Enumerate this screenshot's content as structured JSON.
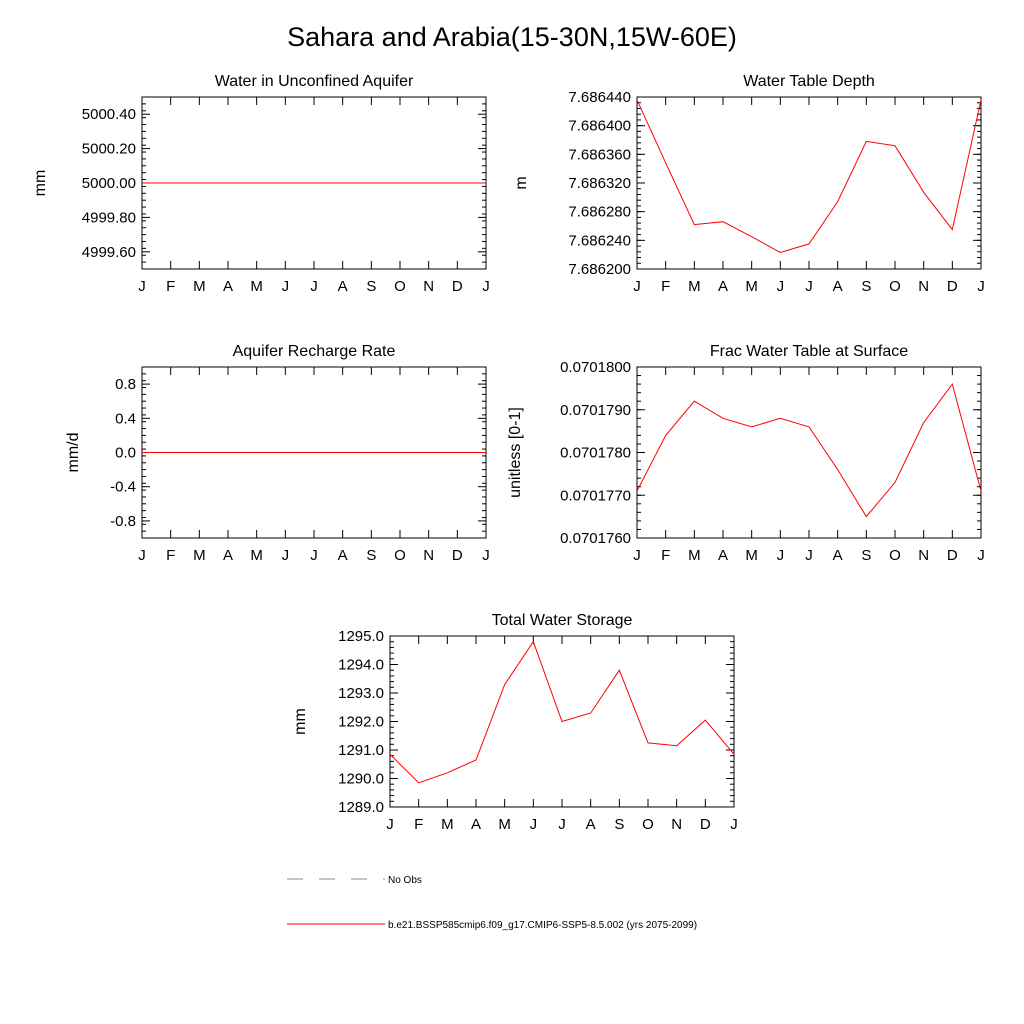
{
  "title": "Sahara and Arabia(15-30N,15W-60E)",
  "month_ticks": [
    "J",
    "F",
    "M",
    "A",
    "M",
    "J",
    "J",
    "A",
    "S",
    "O",
    "N",
    "D",
    "J"
  ],
  "chart_data": [
    {
      "type": "line",
      "title": "Water in Unconfined Aquifer",
      "ylabel": "mm",
      "ylim": [
        4999.5,
        5000.5
      ],
      "yticks": [
        4999.6,
        4999.8,
        5000.0,
        5000.2,
        5000.4
      ],
      "ytick_labels": [
        "4999.60",
        "4999.80",
        "5000.00",
        "5000.20",
        "5000.40"
      ],
      "series": [
        {
          "color": "#ff0000",
          "values": [
            5000.0,
            5000.0,
            5000.0,
            5000.0,
            5000.0,
            5000.0,
            5000.0,
            5000.0,
            5000.0,
            5000.0,
            5000.0,
            5000.0,
            5000.0
          ]
        }
      ]
    },
    {
      "type": "line",
      "title": "Water Table Depth",
      "ylabel": "m",
      "ylim": [
        7.6862,
        7.68644
      ],
      "yticks": [
        7.6862,
        7.68624,
        7.68628,
        7.68632,
        7.68636,
        7.6864,
        7.68644
      ],
      "ytick_labels": [
        "7.686200",
        "7.686240",
        "7.686280",
        "7.686320",
        "7.686360",
        "7.686400",
        "7.686440"
      ],
      "series": [
        {
          "color": "#ff0000",
          "values": [
            7.686436,
            7.686348,
            7.686262,
            7.686266,
            7.686245,
            7.686223,
            7.686235,
            7.686294,
            7.686378,
            7.686372,
            7.686307,
            7.686255,
            7.686436
          ]
        }
      ]
    },
    {
      "type": "line",
      "title": "Aquifer Recharge Rate",
      "ylabel": "mm/d",
      "ylim": [
        -1.0,
        1.0
      ],
      "yticks": [
        -0.8,
        -0.4,
        0.0,
        0.4,
        0.8
      ],
      "ytick_labels": [
        "-0.8",
        "-0.4",
        "0.0",
        "0.4",
        "0.8"
      ],
      "series": [
        {
          "color": "#ff0000",
          "values": [
            0,
            0,
            0,
            0,
            0,
            0,
            0,
            0,
            0,
            0,
            0,
            0,
            0
          ]
        }
      ]
    },
    {
      "type": "line",
      "title": "Frac Water Table at Surface",
      "ylabel": "unitless [0-1]",
      "ylim": [
        0.070176,
        0.07018
      ],
      "yticks": [
        0.070176,
        0.070177,
        0.070178,
        0.070179,
        0.07018
      ],
      "ytick_labels": [
        "0.0701760",
        "0.0701770",
        "0.0701780",
        "0.0701790",
        "0.0701800"
      ],
      "series": [
        {
          "color": "#ff0000",
          "values": [
            0.0701771,
            0.0701784,
            0.0701792,
            0.0701788,
            0.0701786,
            0.0701788,
            0.0701786,
            0.0701776,
            0.0701765,
            0.0701773,
            0.0701787,
            0.0701796,
            0.0701771
          ]
        }
      ]
    },
    {
      "type": "line",
      "title": "Total Water Storage",
      "ylabel": "mm",
      "ylim": [
        1289.0,
        1295.0
      ],
      "yticks": [
        1289.0,
        1290.0,
        1291.0,
        1292.0,
        1293.0,
        1294.0,
        1295.0
      ],
      "ytick_labels": [
        "1289.0",
        "1290.0",
        "1291.0",
        "1292.0",
        "1293.0",
        "1294.0",
        "1295.0"
      ],
      "series": [
        {
          "color": "#ff0000",
          "values": [
            1290.85,
            1289.85,
            1290.2,
            1290.65,
            1293.3,
            1294.8,
            1292.0,
            1292.3,
            1293.8,
            1291.25,
            1291.15,
            1292.05,
            1290.85
          ]
        }
      ]
    }
  ],
  "legend": [
    {
      "label": "No Obs",
      "color": "#888888",
      "style": "dashed"
    },
    {
      "label": "b.e21.BSSP585cmip6.f09_g17.CMIP6-SSP5-8.5.002 (yrs 2075-2099)",
      "color": "#ff0000",
      "style": "solid"
    }
  ]
}
